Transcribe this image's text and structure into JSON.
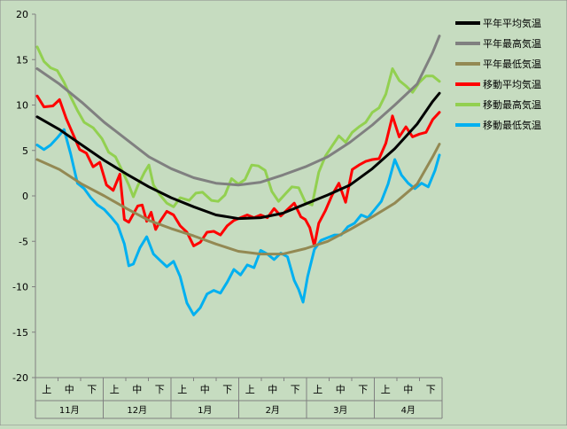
{
  "chart_data": {
    "type": "line",
    "title": "",
    "xlabel": "",
    "ylabel": "",
    "ylim": [
      -20,
      20
    ],
    "yticks": [
      -20,
      -15,
      -10,
      -5,
      0,
      5,
      10,
      15,
      20
    ],
    "months": [
      "11月",
      "12月",
      "1月",
      "2月",
      "3月",
      "4月"
    ],
    "decades": [
      "上",
      "中",
      "下"
    ],
    "x_range": [
      0,
      18
    ],
    "legend_position": "right",
    "grid": false,
    "background": "#c6dcc0",
    "series": [
      {
        "name": "平年平均気温",
        "color": "#000000",
        "width": 3,
        "points": [
          [
            0,
            8.7
          ],
          [
            1,
            7.3
          ],
          [
            2,
            5.6
          ],
          [
            3,
            3.9
          ],
          [
            4,
            2.4
          ],
          [
            5,
            1.0
          ],
          [
            6,
            -0.2
          ],
          [
            7,
            -1.2
          ],
          [
            8,
            -2.1
          ],
          [
            9,
            -2.5
          ],
          [
            10,
            -2.4
          ],
          [
            11,
            -1.9
          ],
          [
            12,
            -0.9
          ],
          [
            13,
            0.1
          ],
          [
            14,
            1.2
          ],
          [
            15,
            3.0
          ],
          [
            16,
            5.2
          ],
          [
            17,
            7.9
          ],
          [
            17.7,
            10.4
          ],
          [
            18,
            11.3
          ]
        ]
      },
      {
        "name": "平年最高気温",
        "color": "#808080",
        "width": 3,
        "points": [
          [
            0,
            14.0
          ],
          [
            1,
            12.3
          ],
          [
            2,
            10.3
          ],
          [
            3,
            8.1
          ],
          [
            4,
            6.2
          ],
          [
            5,
            4.3
          ],
          [
            6,
            3.0
          ],
          [
            7,
            2.0
          ],
          [
            8,
            1.4
          ],
          [
            9,
            1.2
          ],
          [
            10,
            1.5
          ],
          [
            11,
            2.3
          ],
          [
            12,
            3.2
          ],
          [
            13,
            4.3
          ],
          [
            14,
            5.9
          ],
          [
            15,
            7.8
          ],
          [
            16,
            10.0
          ],
          [
            17,
            12.3
          ],
          [
            17.7,
            15.8
          ],
          [
            18,
            17.6
          ]
        ]
      },
      {
        "name": "平年最低気温",
        "color": "#938953",
        "width": 3,
        "points": [
          [
            0,
            4.0
          ],
          [
            1,
            2.9
          ],
          [
            2,
            1.3
          ],
          [
            3,
            0.0
          ],
          [
            4,
            -1.4
          ],
          [
            5,
            -2.7
          ],
          [
            6,
            -3.6
          ],
          [
            7,
            -4.4
          ],
          [
            8,
            -5.3
          ],
          [
            9,
            -6.1
          ],
          [
            10,
            -6.4
          ],
          [
            11,
            -6.4
          ],
          [
            12,
            -5.8
          ],
          [
            13,
            -5.0
          ],
          [
            14,
            -3.7
          ],
          [
            15,
            -2.3
          ],
          [
            16,
            -0.8
          ],
          [
            17,
            1.3
          ],
          [
            17.7,
            4.3
          ],
          [
            18,
            5.7
          ]
        ]
      },
      {
        "name": "移動平均気温",
        "color": "#ff0000",
        "width": 3,
        "points": [
          [
            0,
            11.0
          ],
          [
            0.3,
            9.8
          ],
          [
            0.7,
            9.9
          ],
          [
            1.0,
            10.6
          ],
          [
            1.3,
            8.5
          ],
          [
            1.6,
            6.8
          ],
          [
            1.9,
            5.1
          ],
          [
            2.2,
            4.7
          ],
          [
            2.5,
            3.2
          ],
          [
            2.8,
            3.7
          ],
          [
            3.1,
            1.2
          ],
          [
            3.4,
            0.6
          ],
          [
            3.7,
            2.4
          ],
          [
            3.9,
            -2.6
          ],
          [
            4.1,
            -2.9
          ],
          [
            4.3,
            -2.0
          ],
          [
            4.5,
            -1.1
          ],
          [
            4.7,
            -1.0
          ],
          [
            4.9,
            -2.8
          ],
          [
            5.1,
            -1.8
          ],
          [
            5.3,
            -3.7
          ],
          [
            5.5,
            -2.8
          ],
          [
            5.8,
            -1.7
          ],
          [
            6.1,
            -2.1
          ],
          [
            6.4,
            -3.3
          ],
          [
            6.7,
            -4.0
          ],
          [
            7.0,
            -5.5
          ],
          [
            7.3,
            -5.1
          ],
          [
            7.6,
            -4.0
          ],
          [
            7.9,
            -3.9
          ],
          [
            8.2,
            -4.3
          ],
          [
            8.5,
            -3.3
          ],
          [
            8.8,
            -2.7
          ],
          [
            9.1,
            -2.4
          ],
          [
            9.4,
            -2.1
          ],
          [
            9.7,
            -2.4
          ],
          [
            10.0,
            -2.1
          ],
          [
            10.3,
            -2.4
          ],
          [
            10.6,
            -1.4
          ],
          [
            10.9,
            -2.2
          ],
          [
            11.2,
            -1.5
          ],
          [
            11.5,
            -0.8
          ],
          [
            11.8,
            -2.3
          ],
          [
            12.0,
            -2.6
          ],
          [
            12.2,
            -3.5
          ],
          [
            12.4,
            -5.5
          ],
          [
            12.6,
            -3.0
          ],
          [
            12.9,
            -1.6
          ],
          [
            13.2,
            0.1
          ],
          [
            13.5,
            1.4
          ],
          [
            13.8,
            -0.7
          ],
          [
            14.1,
            2.9
          ],
          [
            14.4,
            3.4
          ],
          [
            14.7,
            3.8
          ],
          [
            15.0,
            4.0
          ],
          [
            15.3,
            4.1
          ],
          [
            15.6,
            5.8
          ],
          [
            15.9,
            8.8
          ],
          [
            16.2,
            6.5
          ],
          [
            16.5,
            7.6
          ],
          [
            16.8,
            6.5
          ],
          [
            17.1,
            6.8
          ],
          [
            17.4,
            7.0
          ],
          [
            17.7,
            8.4
          ],
          [
            18.0,
            9.2
          ]
        ]
      },
      {
        "name": "移動最高気温",
        "color": "#92d050",
        "width": 3,
        "points": [
          [
            0,
            16.4
          ],
          [
            0.3,
            14.8
          ],
          [
            0.6,
            14.1
          ],
          [
            0.9,
            13.8
          ],
          [
            1.2,
            12.5
          ],
          [
            1.5,
            10.9
          ],
          [
            1.8,
            9.4
          ],
          [
            2.1,
            8.1
          ],
          [
            2.5,
            7.5
          ],
          [
            2.9,
            6.3
          ],
          [
            3.2,
            4.8
          ],
          [
            3.5,
            4.3
          ],
          [
            3.8,
            2.8
          ],
          [
            4.1,
            1.2
          ],
          [
            4.3,
            -0.1
          ],
          [
            4.5,
            1.1
          ],
          [
            4.8,
            2.6
          ],
          [
            5.0,
            3.4
          ],
          [
            5.2,
            1.2
          ],
          [
            5.5,
            0.1
          ],
          [
            5.8,
            -0.8
          ],
          [
            6.1,
            -1.2
          ],
          [
            6.4,
            -0.2
          ],
          [
            6.8,
            -0.5
          ],
          [
            7.1,
            0.3
          ],
          [
            7.4,
            0.4
          ],
          [
            7.8,
            -0.5
          ],
          [
            8.1,
            -0.6
          ],
          [
            8.4,
            0.1
          ],
          [
            8.7,
            1.9
          ],
          [
            9.0,
            1.3
          ],
          [
            9.3,
            1.8
          ],
          [
            9.6,
            3.4
          ],
          [
            9.9,
            3.3
          ],
          [
            10.2,
            2.8
          ],
          [
            10.5,
            0.5
          ],
          [
            10.8,
            -0.6
          ],
          [
            11.1,
            0.2
          ],
          [
            11.4,
            1.0
          ],
          [
            11.7,
            0.9
          ],
          [
            12.0,
            -0.7
          ],
          [
            12.3,
            -1.0
          ],
          [
            12.6,
            2.6
          ],
          [
            12.9,
            4.4
          ],
          [
            13.2,
            5.5
          ],
          [
            13.5,
            6.6
          ],
          [
            13.8,
            5.9
          ],
          [
            14.1,
            7.0
          ],
          [
            14.4,
            7.6
          ],
          [
            14.7,
            8.1
          ],
          [
            15.0,
            9.2
          ],
          [
            15.3,
            9.7
          ],
          [
            15.6,
            11.2
          ],
          [
            15.9,
            14.0
          ],
          [
            16.2,
            12.7
          ],
          [
            16.5,
            12.1
          ],
          [
            16.8,
            11.4
          ],
          [
            17.1,
            12.5
          ],
          [
            17.4,
            13.2
          ],
          [
            17.7,
            13.2
          ],
          [
            18.0,
            12.6
          ]
        ]
      },
      {
        "name": "移動最低気温",
        "color": "#00b0f0",
        "width": 3,
        "points": [
          [
            0,
            5.6
          ],
          [
            0.3,
            5.1
          ],
          [
            0.6,
            5.6
          ],
          [
            0.9,
            6.4
          ],
          [
            1.2,
            7.3
          ],
          [
            1.5,
            4.6
          ],
          [
            1.8,
            1.4
          ],
          [
            2.1,
            0.8
          ],
          [
            2.4,
            -0.2
          ],
          [
            2.7,
            -1.0
          ],
          [
            3.0,
            -1.5
          ],
          [
            3.3,
            -2.3
          ],
          [
            3.6,
            -3.2
          ],
          [
            3.9,
            -5.3
          ],
          [
            4.1,
            -7.7
          ],
          [
            4.3,
            -7.5
          ],
          [
            4.6,
            -5.7
          ],
          [
            4.9,
            -4.5
          ],
          [
            5.2,
            -6.4
          ],
          [
            5.5,
            -7.1
          ],
          [
            5.8,
            -7.8
          ],
          [
            6.1,
            -7.2
          ],
          [
            6.4,
            -8.9
          ],
          [
            6.7,
            -11.8
          ],
          [
            7.0,
            -13.1
          ],
          [
            7.3,
            -12.3
          ],
          [
            7.6,
            -10.8
          ],
          [
            7.9,
            -10.4
          ],
          [
            8.2,
            -10.7
          ],
          [
            8.5,
            -9.5
          ],
          [
            8.8,
            -8.1
          ],
          [
            9.1,
            -8.7
          ],
          [
            9.4,
            -7.6
          ],
          [
            9.7,
            -7.9
          ],
          [
            10.0,
            -6.0
          ],
          [
            10.3,
            -6.4
          ],
          [
            10.6,
            -7.0
          ],
          [
            10.9,
            -6.3
          ],
          [
            11.2,
            -6.7
          ],
          [
            11.5,
            -9.3
          ],
          [
            11.7,
            -10.3
          ],
          [
            11.9,
            -11.7
          ],
          [
            12.1,
            -8.9
          ],
          [
            12.4,
            -5.9
          ],
          [
            12.7,
            -4.9
          ],
          [
            13.0,
            -4.6
          ],
          [
            13.3,
            -4.3
          ],
          [
            13.6,
            -4.3
          ],
          [
            13.9,
            -3.4
          ],
          [
            14.2,
            -3.0
          ],
          [
            14.5,
            -2.1
          ],
          [
            14.8,
            -2.4
          ],
          [
            15.1,
            -1.5
          ],
          [
            15.4,
            -0.6
          ],
          [
            15.7,
            1.3
          ],
          [
            16.0,
            4.0
          ],
          [
            16.3,
            2.3
          ],
          [
            16.6,
            1.4
          ],
          [
            16.9,
            0.8
          ],
          [
            17.2,
            1.4
          ],
          [
            17.5,
            1.0
          ],
          [
            17.8,
            2.8
          ],
          [
            18.0,
            4.5
          ]
        ]
      }
    ]
  }
}
